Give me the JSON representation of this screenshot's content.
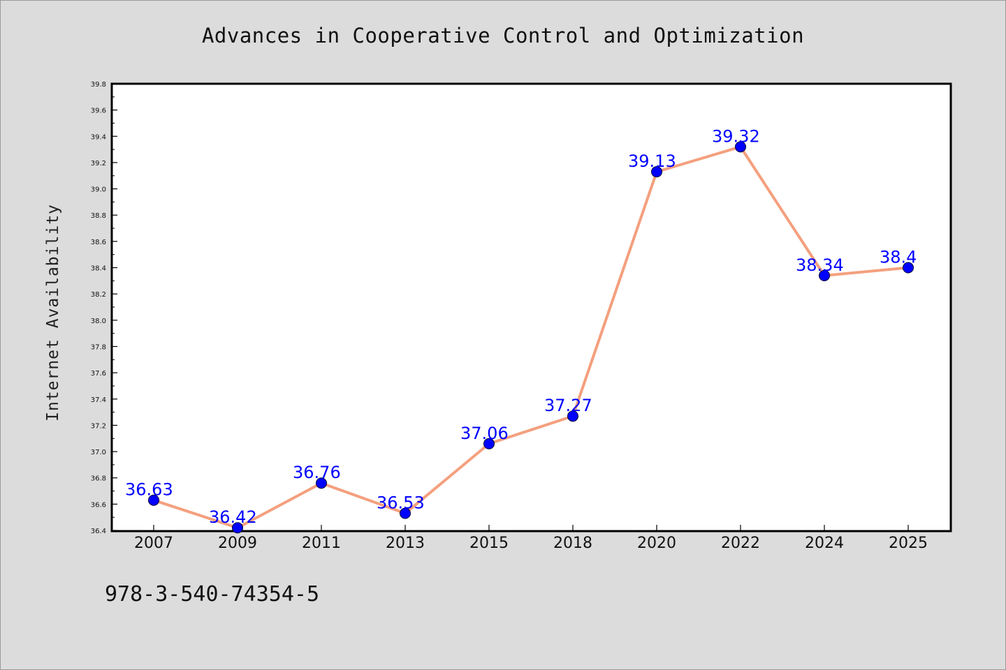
{
  "chart_data": {
    "type": "line",
    "title": "Advances in Cooperative Control and Optimization",
    "xlabel": "",
    "ylabel": "Internet Availability",
    "categories": [
      "2007",
      "2009",
      "2011",
      "2013",
      "2015",
      "2018",
      "2020",
      "2022",
      "2024",
      "2025"
    ],
    "values": [
      36.63,
      36.42,
      36.76,
      36.53,
      37.06,
      37.27,
      39.13,
      39.32,
      38.34,
      38.4
    ],
    "data_labels": [
      "36.63",
      "36.42",
      "36.76",
      "36.53",
      "37.06",
      "37.27",
      "39.13",
      "39.32",
      "38.34",
      "38.4"
    ],
    "ylim": [
      36.4,
      39.8
    ],
    "yticks": [
      "36.4",
      "36.6",
      "36.8",
      "37.0",
      "37.2",
      "37.4",
      "37.6",
      "37.8",
      "38.0",
      "38.2",
      "38.4",
      "38.6",
      "38.8",
      "39.0",
      "39.2",
      "39.4",
      "39.6",
      "39.8"
    ],
    "line_color": "#f4a07e",
    "marker_color": "#0000ff",
    "label_color": "#0000ff",
    "grid": false,
    "legend": "none"
  },
  "footnote": "978-3-540-74354-5"
}
